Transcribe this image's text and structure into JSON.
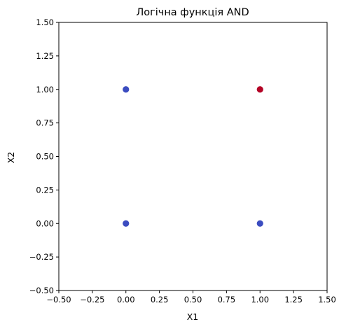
{
  "chart_data": {
    "type": "scatter",
    "title": "Логічна функція AND",
    "xlabel": "X1",
    "ylabel": "X2",
    "xlim": [
      -0.5,
      1.5
    ],
    "ylim": [
      -0.5,
      1.5
    ],
    "grid": false,
    "xticks": [
      -0.5,
      -0.25,
      0.0,
      0.25,
      0.5,
      0.75,
      1.0,
      1.25,
      1.5
    ],
    "xtick_labels": [
      "−0.50",
      "−0.25",
      "0.00",
      "0.25",
      "0.50",
      "0.75",
      "1.00",
      "1.25",
      "1.50"
    ],
    "yticks": [
      -0.5,
      -0.25,
      0.0,
      0.25,
      0.5,
      0.75,
      1.0,
      1.25,
      1.5
    ],
    "ytick_labels": [
      "−0.50",
      "−0.25",
      "0.00",
      "0.25",
      "0.50",
      "0.75",
      "1.00",
      "1.25",
      "1.50"
    ],
    "points": [
      {
        "x": 0,
        "y": 0,
        "class": 0,
        "color": "#3b4cc0"
      },
      {
        "x": 0,
        "y": 1,
        "class": 0,
        "color": "#3b4cc0"
      },
      {
        "x": 1,
        "y": 0,
        "class": 0,
        "color": "#3b4cc0"
      },
      {
        "x": 1,
        "y": 1,
        "class": 1,
        "color": "#b40426"
      }
    ]
  }
}
